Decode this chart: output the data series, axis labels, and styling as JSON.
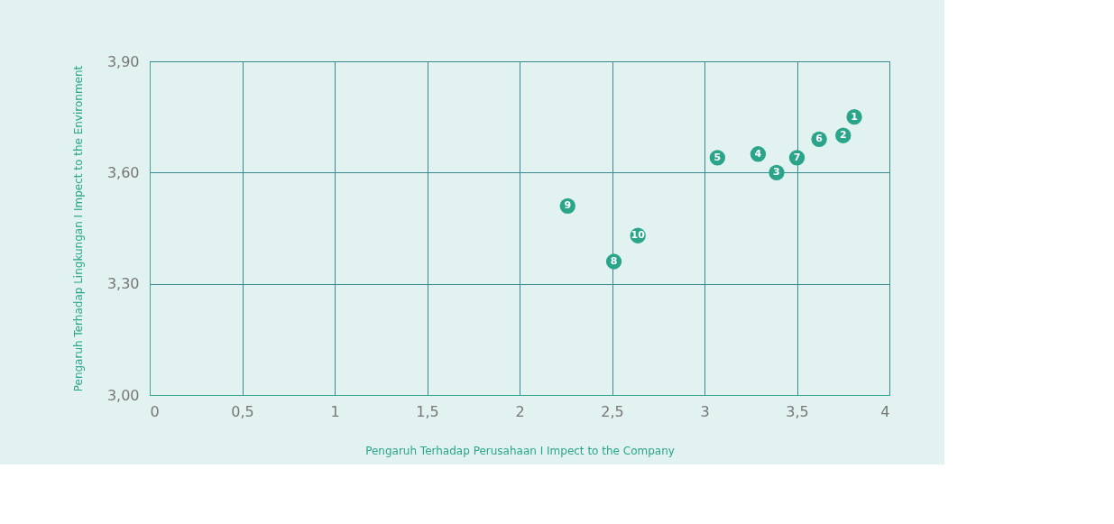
{
  "chart_data": {
    "type": "scatter",
    "xlabel": "Pengaruh Terhadap Perusahaan  I  Impect to the Company",
    "ylabel": "Pengaruh Terhadap Lingkungan  I  Impect to the Environment",
    "x": [
      3.81,
      3.75,
      3.39,
      3.29,
      3.07,
      3.62,
      3.5,
      2.51,
      2.26,
      2.64
    ],
    "values": [
      3.75,
      3.7,
      3.6,
      3.65,
      3.64,
      3.69,
      3.64,
      3.36,
      3.51,
      3.43
    ],
    "annotations": [
      {
        "text": "1",
        "x": 3.81,
        "y": 3.75
      },
      {
        "text": "2",
        "x": 3.75,
        "y": 3.7
      },
      {
        "text": "3",
        "x": 3.39,
        "y": 3.6
      },
      {
        "text": "4",
        "x": 3.29,
        "y": 3.65
      },
      {
        "text": "5",
        "x": 3.07,
        "y": 3.64
      },
      {
        "text": "6",
        "x": 3.62,
        "y": 3.69
      },
      {
        "text": "7",
        "x": 3.5,
        "y": 3.64
      },
      {
        "text": "8",
        "x": 2.51,
        "y": 3.36
      },
      {
        "text": "9",
        "x": 2.26,
        "y": 3.51
      },
      {
        "text": "10",
        "x": 2.64,
        "y": 3.43
      }
    ],
    "color": "#2aa58a",
    "marker": "circle",
    "xlim": [
      0,
      4
    ],
    "xticks": [
      0,
      {
        "value": 0.5,
        "label": "0,5"
      },
      1,
      {
        "value": 1.5,
        "label": "1,5"
      },
      2,
      {
        "value": 2.5,
        "label": "2,5"
      },
      3,
      {
        "value": 3.5,
        "label": "3,5"
      },
      4
    ],
    "ylim": [
      3.0,
      3.9
    ],
    "yticks": [
      {
        "value": 3.0,
        "label": "3,00"
      },
      {
        "value": 3.3,
        "label": "3,30"
      },
      {
        "value": 3.6,
        "label": "3,60"
      },
      {
        "value": 3.9,
        "label": "3,90"
      }
    ],
    "grid": true
  }
}
